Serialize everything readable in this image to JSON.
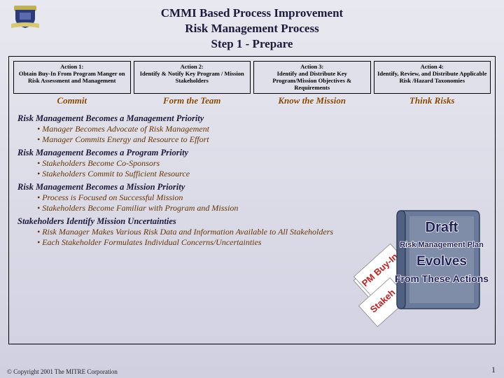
{
  "header": {
    "line1": "CMMI Based Process Improvement",
    "line2": "Risk Management Process",
    "line3": "Step 1 - Prepare"
  },
  "actions": [
    {
      "title": "Action 1:",
      "desc": "Obtain Buy-In From Program Manger on Risk Assessment and Management",
      "phase": "Commit"
    },
    {
      "title": "Action 2:",
      "desc": "Identify & Notify Key Program / Mission Stakeholders",
      "phase": "Form the Team"
    },
    {
      "title": "Action 3:",
      "desc": "Identify and Distribute Key Program/Mission Objectives & Requirements",
      "phase": "Know the Mission"
    },
    {
      "title": "Action 4:",
      "desc": "Identify, Review, and Distribute Applicable Risk /Hazard Taxonomies",
      "phase": "Think Risks"
    }
  ],
  "priorities": [
    {
      "heading": "Risk Management Becomes a Management Priority",
      "bullets": [
        "• Manager Becomes Advocate of Risk Management",
        "• Manager Commits Energy and Resource to Effort"
      ],
      "wide": false
    },
    {
      "heading": "Risk Management Becomes a Program Priority",
      "bullets": [
        "• Stakeholders  Become Co-Sponsors",
        "• Stakeholders Commit to Sufficient Resource"
      ],
      "wide": false
    },
    {
      "heading": "Risk Management Becomes a Mission Priority",
      "bullets": [
        "• Process is Focused on Successful Mission",
        "• Stakeholders Become Familiar with Program and Mission"
      ],
      "wide": false
    },
    {
      "heading": "Stakeholders Identify Mission Uncertainties",
      "bullets": [
        "• Risk Manager Makes Various Risk Data and Information Available to All Stakeholders",
        "• Each Stakeholder Formulates Individual Concerns/Uncertainties"
      ],
      "wide": true
    }
  ],
  "folder": {
    "diag1": "PM Buy-In",
    "diag2": "Stakeh",
    "book_lines": [
      "Draft",
      "Risk Management Plan",
      "Evolves",
      "From These Actions"
    ],
    "book_color": "#6a7a9a",
    "book_stroke": "#30405a",
    "pages_color": "#ffffff",
    "diag_page_fill": "#ffffff",
    "diag_page_stroke": "#888"
  },
  "footer": "© Copyright 2001 The MITRE Corporation",
  "page_num": "1",
  "logo": {
    "shield_fill": "#2a3a7a",
    "ribbon_fill": "#d4c870",
    "top_fill": "#c0b050"
  },
  "colors": {
    "heading": "#1a1a3a",
    "bullet": "#663300",
    "phase": "#884400"
  }
}
